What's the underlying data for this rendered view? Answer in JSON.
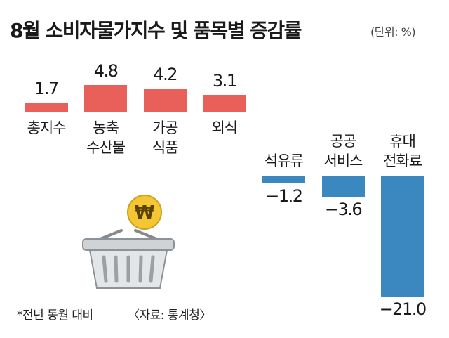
{
  "chart_data": {
    "type": "bar",
    "title": "8월 소비자물가지수 및 품목별 증감률",
    "subtitle": "(단위: %)",
    "categories": [
      "총지수",
      "농축\n수산물",
      "가공\n식품",
      "외식",
      "석유류",
      "공공\n서비스",
      "휴대\n전화료"
    ],
    "values": [
      1.7,
      4.8,
      4.2,
      3.1,
      -1.2,
      -3.6,
      -21.0
    ],
    "value_labels": [
      "1.7",
      "4.8",
      "4.2",
      "3.1",
      "−1.2",
      "−3.6",
      "−21.0"
    ],
    "positive_color": "#e9605a",
    "negative_color": "#3b87c0",
    "note": "*전년 동월 대비",
    "source": "〈자료: 통계청〉"
  }
}
